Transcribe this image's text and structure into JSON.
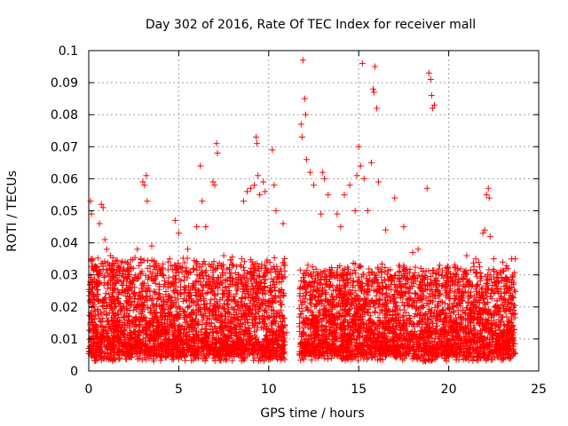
{
  "chart_data": {
    "type": "scatter",
    "title": "Day 302 of 2016, Rate Of TEC Index for receiver mall",
    "xlabel": "GPS time / hours",
    "ylabel": "ROTI / TECUs",
    "xlim": [
      0,
      25
    ],
    "ylim": [
      0,
      0.1
    ],
    "xticks": [
      0,
      5,
      10,
      15,
      20,
      25
    ],
    "xtick_labels": [
      "0",
      "5",
      "10",
      "15",
      "20",
      "25"
    ],
    "yticks": [
      0,
      0.01,
      0.02,
      0.03,
      0.04,
      0.05,
      0.06,
      0.07,
      0.08,
      0.09,
      0.1
    ],
    "ytick_labels": [
      "0",
      "0.01",
      "0.02",
      "0.03",
      "0.04",
      "0.05",
      "0.06",
      "0.07",
      "0.08",
      "0.09",
      "0.1"
    ],
    "grid": true,
    "marker": "+",
    "color": "#ff0000",
    "series": [
      {
        "name": "ROTI",
        "points": [
          [
            0.1,
            0.053
          ],
          [
            0.15,
            0.049
          ],
          [
            0.2,
            0.035
          ],
          [
            0.3,
            0.028
          ],
          [
            0.5,
            0.022
          ],
          [
            0.6,
            0.046
          ],
          [
            0.7,
            0.052
          ],
          [
            0.8,
            0.051
          ],
          [
            0.9,
            0.041
          ],
          [
            1.0,
            0.038
          ],
          [
            1.2,
            0.036
          ],
          [
            1.5,
            0.03
          ],
          [
            2.0,
            0.025
          ],
          [
            2.5,
            0.024
          ],
          [
            2.7,
            0.038
          ],
          [
            2.9,
            0.035
          ],
          [
            3.0,
            0.059
          ],
          [
            3.1,
            0.058
          ],
          [
            3.2,
            0.061
          ],
          [
            3.25,
            0.053
          ],
          [
            3.5,
            0.039
          ],
          [
            4.0,
            0.031
          ],
          [
            4.5,
            0.035
          ],
          [
            4.8,
            0.047
          ],
          [
            5.0,
            0.043
          ],
          [
            5.5,
            0.038
          ],
          [
            6.0,
            0.045
          ],
          [
            6.2,
            0.064
          ],
          [
            6.3,
            0.053
          ],
          [
            6.5,
            0.045
          ],
          [
            6.9,
            0.059
          ],
          [
            7.0,
            0.058
          ],
          [
            7.1,
            0.071
          ],
          [
            7.15,
            0.068
          ],
          [
            7.5,
            0.036
          ],
          [
            8.0,
            0.033
          ],
          [
            8.3,
            0.03
          ],
          [
            8.5,
            0.035
          ],
          [
            8.6,
            0.053
          ],
          [
            8.8,
            0.056
          ],
          [
            9.0,
            0.057
          ],
          [
            9.2,
            0.058
          ],
          [
            9.3,
            0.073
          ],
          [
            9.35,
            0.071
          ],
          [
            9.4,
            0.061
          ],
          [
            9.5,
            0.055
          ],
          [
            9.7,
            0.059
          ],
          [
            9.8,
            0.056
          ],
          [
            10.2,
            0.069
          ],
          [
            10.3,
            0.058
          ],
          [
            10.4,
            0.05
          ],
          [
            10.8,
            0.046
          ],
          [
            10.9,
            0.033
          ],
          [
            11.0,
            0.012
          ],
          [
            11.8,
            0.077
          ],
          [
            11.85,
            0.073
          ],
          [
            11.9,
            0.097
          ],
          [
            12.0,
            0.085
          ],
          [
            12.05,
            0.08
          ],
          [
            12.1,
            0.066
          ],
          [
            12.3,
            0.062
          ],
          [
            12.5,
            0.058
          ],
          [
            12.9,
            0.049
          ],
          [
            13.0,
            0.062
          ],
          [
            13.1,
            0.06
          ],
          [
            13.3,
            0.055
          ],
          [
            13.8,
            0.049
          ],
          [
            14.0,
            0.045
          ],
          [
            14.2,
            0.055
          ],
          [
            14.5,
            0.058
          ],
          [
            14.8,
            0.05
          ],
          [
            14.9,
            0.061
          ],
          [
            15.0,
            0.07
          ],
          [
            15.1,
            0.064
          ],
          [
            15.2,
            0.096
          ],
          [
            15.3,
            0.06
          ],
          [
            15.5,
            0.05
          ],
          [
            15.7,
            0.065
          ],
          [
            15.8,
            0.088
          ],
          [
            15.85,
            0.087
          ],
          [
            15.9,
            0.095
          ],
          [
            16.0,
            0.082
          ],
          [
            16.1,
            0.059
          ],
          [
            16.5,
            0.044
          ],
          [
            17.0,
            0.054
          ],
          [
            17.5,
            0.045
          ],
          [
            18.0,
            0.037
          ],
          [
            18.3,
            0.038
          ],
          [
            18.8,
            0.057
          ],
          [
            18.9,
            0.093
          ],
          [
            19.0,
            0.091
          ],
          [
            19.05,
            0.086
          ],
          [
            19.1,
            0.082
          ],
          [
            19.2,
            0.083
          ],
          [
            19.5,
            0.033
          ],
          [
            20.0,
            0.031
          ],
          [
            20.5,
            0.032
          ],
          [
            21.0,
            0.036
          ],
          [
            21.5,
            0.035
          ],
          [
            21.9,
            0.043
          ],
          [
            22.0,
            0.044
          ],
          [
            22.1,
            0.055
          ],
          [
            22.2,
            0.057
          ],
          [
            22.25,
            0.054
          ],
          [
            22.3,
            0.042
          ],
          [
            22.5,
            0.035
          ],
          [
            23.0,
            0.034
          ],
          [
            23.5,
            0.035
          ],
          [
            23.7,
            0.035
          ]
        ]
      }
    ],
    "noise_bands": [
      {
        "from": 0.0,
        "to": 10.9,
        "min": 0.003,
        "max": 0.032
      },
      {
        "from": 11.7,
        "to": 23.7,
        "min": 0.003,
        "max": 0.03
      }
    ]
  }
}
